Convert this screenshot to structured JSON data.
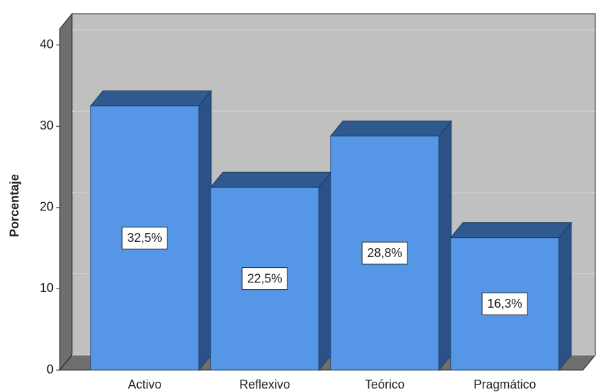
{
  "chart_data": {
    "type": "bar",
    "y_label": "Porcentaje",
    "categories": [
      "Activo",
      "Reflexivo",
      "Teórico",
      "Pragmático"
    ],
    "values": [
      32.5,
      22.5,
      28.8,
      16.3
    ],
    "value_labels": [
      "32,5%",
      "22,5%",
      "28,8%",
      "16,3%"
    ],
    "color": "#5596e6",
    "ylim": [
      0,
      42
    ],
    "yticks": [
      0,
      10,
      20,
      30,
      40
    ],
    "grid": true
  }
}
